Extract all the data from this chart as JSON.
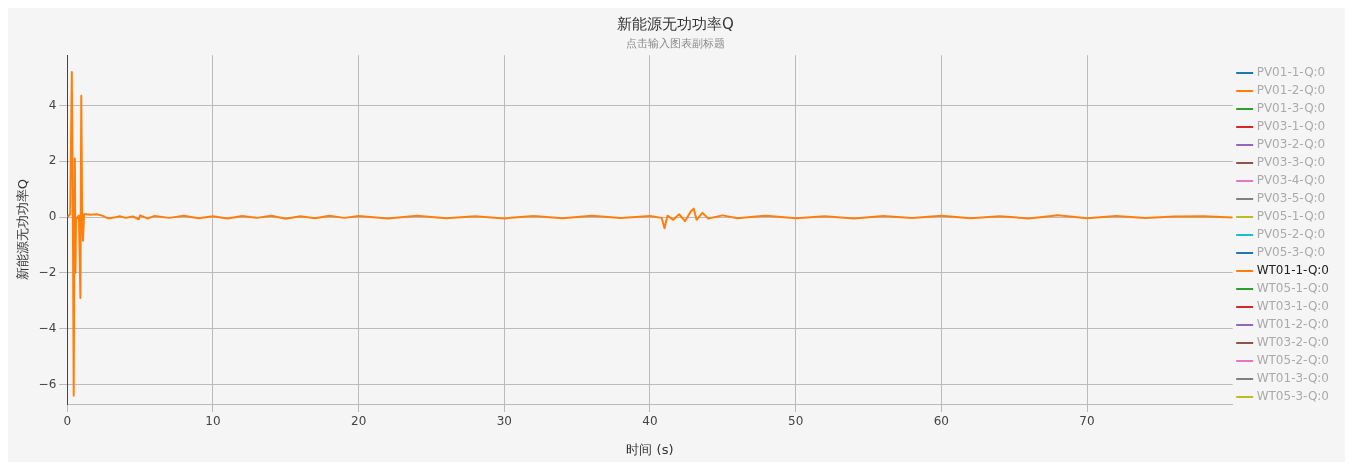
{
  "chart_data": {
    "type": "line",
    "title": "新能源无功功率Q",
    "subtitle": "点击输入图表副标题",
    "xlabel": "时间 (s)",
    "ylabel": "新能源无功功率Q",
    "xlim": [
      0,
      80
    ],
    "xticks": [
      0,
      10,
      20,
      30,
      40,
      50,
      60,
      70
    ],
    "ylim": [
      -6.7,
      5.8
    ],
    "yticks": [
      -6,
      -4,
      -2,
      0,
      2,
      4
    ],
    "grid": true,
    "legend": "right",
    "marker": "none",
    "line_style": "solid",
    "x": [
      0,
      0.2,
      0.31,
      0.38,
      0.44,
      0.5,
      0.52,
      0.56,
      0.6,
      0.7,
      0.8,
      0.9,
      0.96,
      1.02,
      1.08,
      1.15,
      1.3,
      1.6,
      2.0,
      2.4,
      2.8,
      3.2,
      3.6,
      4.0,
      4.5,
      4.9,
      5.0,
      5.5,
      6,
      7,
      8,
      9,
      10,
      11,
      12,
      13,
      14,
      15,
      16,
      17,
      18,
      19,
      20,
      22,
      24,
      26,
      28,
      30,
      32,
      34,
      36,
      38,
      40,
      40.8,
      41.0,
      41.2,
      41.6,
      42,
      42.4,
      42.8,
      43.0,
      43.2,
      43.6,
      44,
      45,
      46,
      48,
      50,
      52,
      54,
      56,
      58,
      60,
      62,
      64,
      66,
      68,
      70,
      72,
      74,
      76,
      78,
      80
    ],
    "series": [
      {
        "name": "PV01-1-Q:0",
        "color": "#1f77b4",
        "values": [
          null,
          null,
          null,
          null,
          null,
          null,
          null,
          null,
          null,
          null,
          null,
          null,
          null,
          null,
          null,
          null,
          null,
          null,
          null,
          null,
          null,
          null,
          null,
          null,
          null,
          null,
          null,
          null,
          null,
          null,
          null,
          null,
          null,
          null,
          null,
          null,
          null,
          null,
          null,
          null,
          null,
          null,
          null,
          null,
          null,
          null,
          null,
          null,
          null,
          null,
          null,
          null,
          null,
          null,
          null,
          null,
          null,
          null,
          null,
          null,
          null,
          null,
          null,
          null,
          null,
          null,
          null,
          null,
          null,
          null,
          null,
          null,
          null,
          null,
          null,
          null,
          null,
          null,
          null,
          null,
          null,
          null,
          null
        ]
      },
      {
        "name": "PV01-2-Q:0",
        "color": "#ff7f0e",
        "values": [
          null,
          null,
          null,
          null,
          null,
          null,
          null,
          null,
          null,
          null,
          null,
          null,
          null,
          null,
          null,
          null,
          null,
          null,
          null,
          null,
          null,
          null,
          null,
          null,
          null,
          null,
          null,
          null,
          null,
          null,
          null,
          null,
          null,
          null,
          null,
          null,
          null,
          null,
          null,
          null,
          null,
          null,
          null,
          null,
          null,
          null,
          null,
          null,
          null,
          null,
          null,
          null,
          null,
          null,
          null,
          null,
          null,
          null,
          null,
          null,
          null,
          null,
          null,
          null,
          null,
          null,
          null,
          null,
          null,
          null,
          null,
          null,
          null,
          null,
          null,
          null,
          null,
          null,
          null,
          null,
          null,
          null,
          null
        ]
      },
      {
        "name": "PV01-3-Q:0",
        "color": "#2ca02c",
        "values": [
          null,
          null,
          null,
          null,
          null,
          null,
          null,
          null,
          null,
          null,
          null,
          null,
          null,
          null,
          null,
          null,
          null,
          null,
          null,
          null,
          null,
          null,
          null,
          null,
          null,
          null,
          null,
          null,
          null,
          null,
          null,
          null,
          null,
          null,
          null,
          null,
          null,
          null,
          null,
          null,
          null,
          null,
          null,
          null,
          null,
          null,
          null,
          null,
          null,
          null,
          null,
          null,
          null,
          null,
          null,
          null,
          null,
          null,
          null,
          null,
          null,
          null,
          null,
          null,
          null,
          null,
          null,
          null,
          null,
          null,
          null,
          null,
          null,
          null,
          null,
          null,
          null,
          null,
          null,
          null,
          null,
          null,
          null
        ]
      },
      {
        "name": "PV03-1-Q:0",
        "color": "#d62728",
        "values": [
          null,
          null,
          null,
          null,
          null,
          null,
          null,
          null,
          null,
          null,
          null,
          null,
          null,
          null,
          null,
          null,
          null,
          null,
          null,
          null,
          null,
          null,
          null,
          null,
          null,
          null,
          null,
          null,
          null,
          null,
          null,
          null,
          null,
          null,
          null,
          null,
          null,
          null,
          null,
          null,
          null,
          null,
          null,
          null,
          null,
          null,
          null,
          null,
          null,
          null,
          null,
          null,
          null,
          null,
          null,
          null,
          null,
          null,
          null,
          null,
          null,
          null,
          null,
          null,
          null,
          null,
          null,
          null,
          null,
          null,
          null,
          null,
          null,
          null,
          null,
          null,
          null,
          null,
          null,
          null,
          null,
          null,
          null
        ]
      },
      {
        "name": "PV03-2-Q:0",
        "color": "#9467bd",
        "values": [
          null,
          null,
          null,
          null,
          null,
          null,
          null,
          null,
          null,
          null,
          null,
          null,
          null,
          null,
          null,
          null,
          null,
          null,
          null,
          null,
          null,
          null,
          null,
          null,
          null,
          null,
          null,
          null,
          null,
          null,
          null,
          null,
          null,
          null,
          null,
          null,
          null,
          null,
          null,
          null,
          null,
          null,
          null,
          null,
          null,
          null,
          null,
          null,
          null,
          null,
          null,
          null,
          null,
          null,
          null,
          null,
          null,
          null,
          null,
          null,
          null,
          null,
          null,
          null,
          null,
          null,
          null,
          null,
          null,
          null,
          null,
          null,
          null,
          null,
          null,
          null,
          null,
          null,
          null,
          null,
          null,
          null,
          null
        ]
      },
      {
        "name": "PV03-3-Q:0",
        "color": "#8c564b",
        "values": [
          null,
          null,
          null,
          null,
          null,
          null,
          null,
          null,
          null,
          null,
          null,
          null,
          null,
          null,
          null,
          null,
          null,
          null,
          null,
          null,
          null,
          null,
          null,
          null,
          null,
          null,
          null,
          null,
          null,
          null,
          null,
          null,
          null,
          null,
          null,
          null,
          null,
          null,
          null,
          null,
          null,
          null,
          null,
          null,
          null,
          null,
          null,
          null,
          null,
          null,
          null,
          null,
          null,
          null,
          null,
          null,
          null,
          null,
          null,
          null,
          null,
          null,
          null,
          null,
          null,
          null,
          null,
          null,
          null,
          null,
          null,
          null,
          null,
          null,
          null,
          null,
          null,
          null,
          null,
          null,
          null,
          null,
          null
        ]
      },
      {
        "name": "PV03-4-Q:0",
        "color": "#e377c2",
        "values": [
          null,
          null,
          null,
          null,
          null,
          null,
          null,
          null,
          null,
          null,
          null,
          null,
          null,
          null,
          null,
          null,
          null,
          null,
          null,
          null,
          null,
          null,
          null,
          null,
          null,
          null,
          null,
          null,
          null,
          null,
          null,
          null,
          null,
          null,
          null,
          null,
          null,
          null,
          null,
          null,
          null,
          null,
          null,
          null,
          null,
          null,
          null,
          null,
          null,
          null,
          null,
          null,
          null,
          null,
          null,
          null,
          null,
          null,
          null,
          null,
          null,
          null,
          null,
          null,
          null,
          null,
          null,
          null,
          null,
          null,
          null,
          null,
          null,
          null,
          null,
          null,
          null,
          null,
          null,
          null,
          null,
          null,
          null
        ]
      },
      {
        "name": "PV03-5-Q:0",
        "color": "#7f7f7f",
        "values": [
          null,
          null,
          null,
          null,
          null,
          null,
          null,
          null,
          null,
          null,
          null,
          null,
          null,
          null,
          null,
          null,
          null,
          null,
          null,
          null,
          null,
          null,
          null,
          null,
          null,
          null,
          null,
          null,
          null,
          null,
          null,
          null,
          null,
          null,
          null,
          null,
          null,
          null,
          null,
          null,
          null,
          null,
          null,
          null,
          null,
          null,
          null,
          null,
          null,
          null,
          null,
          null,
          null,
          null,
          null,
          null,
          null,
          null,
          null,
          null,
          null,
          null,
          null,
          null,
          null,
          null,
          null,
          null,
          null,
          null,
          null,
          null,
          null,
          null,
          null,
          null,
          null,
          null,
          null,
          null,
          null,
          null,
          null
        ]
      },
      {
        "name": "PV05-1-Q:0",
        "color": "#bcbd22",
        "values": [
          null,
          null,
          null,
          null,
          null,
          null,
          null,
          null,
          null,
          null,
          null,
          null,
          null,
          null,
          null,
          null,
          null,
          null,
          null,
          null,
          null,
          null,
          null,
          null,
          null,
          null,
          null,
          null,
          null,
          null,
          null,
          null,
          null,
          null,
          null,
          null,
          null,
          null,
          null,
          null,
          null,
          null,
          null,
          null,
          null,
          null,
          null,
          null,
          null,
          null,
          null,
          null,
          null,
          null,
          null,
          null,
          null,
          null,
          null,
          null,
          null,
          null,
          null,
          null,
          null,
          null,
          null,
          null,
          null,
          null,
          null,
          null,
          null,
          null,
          null,
          null,
          null,
          null,
          null,
          null,
          null,
          null,
          null
        ]
      },
      {
        "name": "PV05-2-Q:0",
        "color": "#17becf",
        "values": [
          null,
          null,
          null,
          null,
          null,
          null,
          null,
          null,
          null,
          null,
          null,
          null,
          null,
          null,
          null,
          null,
          null,
          null,
          null,
          null,
          null,
          null,
          null,
          null,
          null,
          null,
          null,
          null,
          null,
          null,
          null,
          null,
          null,
          null,
          null,
          null,
          null,
          null,
          null,
          null,
          null,
          null,
          null,
          null,
          null,
          null,
          null,
          null,
          null,
          null,
          null,
          null,
          null,
          null,
          null,
          null,
          null,
          null,
          null,
          null,
          null,
          null,
          null,
          null,
          null,
          null,
          null,
          null,
          null,
          null,
          null,
          null,
          null,
          null,
          null,
          null,
          null,
          null,
          null,
          null,
          null,
          null,
          null
        ]
      },
      {
        "name": "PV05-3-Q:0",
        "color": "#1f77b4",
        "values": [
          null,
          null,
          null,
          null,
          null,
          null,
          null,
          null,
          null,
          null,
          null,
          null,
          null,
          null,
          null,
          null,
          null,
          null,
          null,
          null,
          null,
          null,
          null,
          null,
          null,
          null,
          null,
          null,
          null,
          null,
          null,
          null,
          null,
          null,
          null,
          null,
          null,
          null,
          null,
          null,
          null,
          null,
          null,
          null,
          null,
          null,
          null,
          null,
          null,
          null,
          null,
          null,
          null,
          null,
          null,
          null,
          null,
          null,
          null,
          null,
          null,
          null,
          null,
          null,
          null,
          null,
          null,
          null,
          null,
          null,
          null,
          null,
          null,
          null,
          null,
          null,
          null,
          null,
          null,
          null,
          null,
          null,
          null
        ]
      },
      {
        "name": "WT01-1-Q:0",
        "color": "#ff7f0e",
        "values": [
          0,
          0.1,
          5.2,
          0.5,
          -6.4,
          1.0,
          2.1,
          -2.0,
          -0.1,
          0.0,
          0.05,
          -2.9,
          4.35,
          0.0,
          -0.85,
          0.1,
          0.1,
          0.08,
          0.1,
          0.05,
          -0.05,
          -0.02,
          0.03,
          -0.03,
          0.02,
          -0.08,
          0.06,
          -0.05,
          0.04,
          -0.03,
          0.05,
          -0.04,
          0.03,
          -0.05,
          0.04,
          -0.03,
          0.05,
          -0.06,
          0.03,
          -0.04,
          0.05,
          -0.03,
          0.04,
          -0.05,
          0.05,
          -0.04,
          0.03,
          -0.05,
          0.04,
          -0.04,
          0.05,
          -0.03,
          0.04,
          -0.03,
          -0.4,
          0.05,
          -0.1,
          0.1,
          -0.15,
          0.2,
          0.3,
          -0.1,
          0.15,
          -0.05,
          0.06,
          -0.04,
          0.05,
          -0.04,
          0.03,
          -0.05,
          0.04,
          -0.03,
          0.05,
          -0.04,
          0.03,
          -0.05,
          0.06,
          -0.04,
          0.04,
          -0.03,
          0.02,
          0.03,
          -0.02
        ]
      },
      {
        "name": "WT05-1-Q:0",
        "color": "#2ca02c",
        "values": [
          null,
          null,
          null,
          null,
          null,
          null,
          null,
          null,
          null,
          null,
          null,
          null,
          null,
          null,
          null,
          null,
          null,
          null,
          null,
          null,
          null,
          null,
          null,
          null,
          null,
          null,
          null,
          null,
          null,
          null,
          null,
          null,
          null,
          null,
          null,
          null,
          null,
          null,
          null,
          null,
          null,
          null,
          null,
          null,
          null,
          null,
          null,
          null,
          null,
          null,
          null,
          null,
          null,
          null,
          null,
          null,
          null,
          null,
          null,
          null,
          null,
          null,
          null,
          null,
          null,
          null,
          null,
          null,
          null,
          null,
          null,
          null,
          null,
          null,
          null,
          null,
          null,
          null,
          null,
          null,
          null,
          null,
          null
        ]
      },
      {
        "name": "WT03-1-Q:0",
        "color": "#d62728",
        "values": [
          null,
          null,
          null,
          null,
          null,
          null,
          null,
          null,
          null,
          null,
          null,
          null,
          null,
          null,
          null,
          null,
          null,
          null,
          null,
          null,
          null,
          null,
          null,
          null,
          null,
          null,
          null,
          null,
          null,
          null,
          null,
          null,
          null,
          null,
          null,
          null,
          null,
          null,
          null,
          null,
          null,
          null,
          null,
          null,
          null,
          null,
          null,
          null,
          null,
          null,
          null,
          null,
          null,
          null,
          null,
          null,
          null,
          null,
          null,
          null,
          null,
          null,
          null,
          null,
          null,
          null,
          null,
          null,
          null,
          null,
          null,
          null,
          null,
          null,
          null,
          null,
          null,
          null,
          null,
          null,
          null,
          null,
          null
        ]
      },
      {
        "name": "WT01-2-Q:0",
        "color": "#9467bd",
        "values": [
          null,
          null,
          null,
          null,
          null,
          null,
          null,
          null,
          null,
          null,
          null,
          null,
          null,
          null,
          null,
          null,
          null,
          null,
          null,
          null,
          null,
          null,
          null,
          null,
          null,
          null,
          null,
          null,
          null,
          null,
          null,
          null,
          null,
          null,
          null,
          null,
          null,
          null,
          null,
          null,
          null,
          null,
          null,
          null,
          null,
          null,
          null,
          null,
          null,
          null,
          null,
          null,
          null,
          null,
          null,
          null,
          null,
          null,
          null,
          null,
          null,
          null,
          null,
          null,
          null,
          null,
          null,
          null,
          null,
          null,
          null,
          null,
          null,
          null,
          null,
          null,
          null,
          null,
          null,
          null,
          null,
          null,
          null
        ]
      },
      {
        "name": "WT03-2-Q:0",
        "color": "#8c564b",
        "values": [
          null,
          null,
          null,
          null,
          null,
          null,
          null,
          null,
          null,
          null,
          null,
          null,
          null,
          null,
          null,
          null,
          null,
          null,
          null,
          null,
          null,
          null,
          null,
          null,
          null,
          null,
          null,
          null,
          null,
          null,
          null,
          null,
          null,
          null,
          null,
          null,
          null,
          null,
          null,
          null,
          null,
          null,
          null,
          null,
          null,
          null,
          null,
          null,
          null,
          null,
          null,
          null,
          null,
          null,
          null,
          null,
          null,
          null,
          null,
          null,
          null,
          null,
          null,
          null,
          null,
          null,
          null,
          null,
          null,
          null,
          null,
          null,
          null,
          null,
          null,
          null,
          null,
          null,
          null,
          null,
          null,
          null,
          null
        ]
      },
      {
        "name": "WT05-2-Q:0",
        "color": "#e377c2",
        "values": [
          null,
          null,
          null,
          null,
          null,
          null,
          null,
          null,
          null,
          null,
          null,
          null,
          null,
          null,
          null,
          null,
          null,
          null,
          null,
          null,
          null,
          null,
          null,
          null,
          null,
          null,
          null,
          null,
          null,
          null,
          null,
          null,
          null,
          null,
          null,
          null,
          null,
          null,
          null,
          null,
          null,
          null,
          null,
          null,
          null,
          null,
          null,
          null,
          null,
          null,
          null,
          null,
          null,
          null,
          null,
          null,
          null,
          null,
          null,
          null,
          null,
          null,
          null,
          null,
          null,
          null,
          null,
          null,
          null,
          null,
          null,
          null,
          null,
          null,
          null,
          null,
          null,
          null,
          null,
          null,
          null,
          null,
          null
        ]
      },
      {
        "name": "WT01-3-Q:0",
        "color": "#7f7f7f",
        "values": [
          null,
          null,
          null,
          null,
          null,
          null,
          null,
          null,
          null,
          null,
          null,
          null,
          null,
          null,
          null,
          null,
          null,
          null,
          null,
          null,
          null,
          null,
          null,
          null,
          null,
          null,
          null,
          null,
          null,
          null,
          null,
          null,
          null,
          null,
          null,
          null,
          null,
          null,
          null,
          null,
          null,
          null,
          null,
          null,
          null,
          null,
          null,
          null,
          null,
          null,
          null,
          null,
          null,
          null,
          null,
          null,
          null,
          null,
          null,
          null,
          null,
          null,
          null,
          null,
          null,
          null,
          null,
          null,
          null,
          null,
          null,
          null,
          null,
          null,
          null,
          null,
          null,
          null,
          null,
          null,
          null,
          null,
          null
        ]
      },
      {
        "name": "WT05-3-Q:0",
        "color": "#bcbd22",
        "values": [
          null,
          null,
          null,
          null,
          null,
          null,
          null,
          null,
          null,
          null,
          null,
          null,
          null,
          null,
          null,
          null,
          null,
          null,
          null,
          null,
          null,
          null,
          null,
          null,
          null,
          null,
          null,
          null,
          null,
          null,
          null,
          null,
          null,
          null,
          null,
          null,
          null,
          null,
          null,
          null,
          null,
          null,
          null,
          null,
          null,
          null,
          null,
          null,
          null,
          null,
          null,
          null,
          null,
          null,
          null,
          null,
          null,
          null,
          null,
          null,
          null,
          null,
          null,
          null,
          null,
          null,
          null,
          null,
          null,
          null,
          null,
          null,
          null,
          null,
          null,
          null,
          null,
          null,
          null,
          null,
          null,
          null,
          null
        ]
      }
    ]
  }
}
